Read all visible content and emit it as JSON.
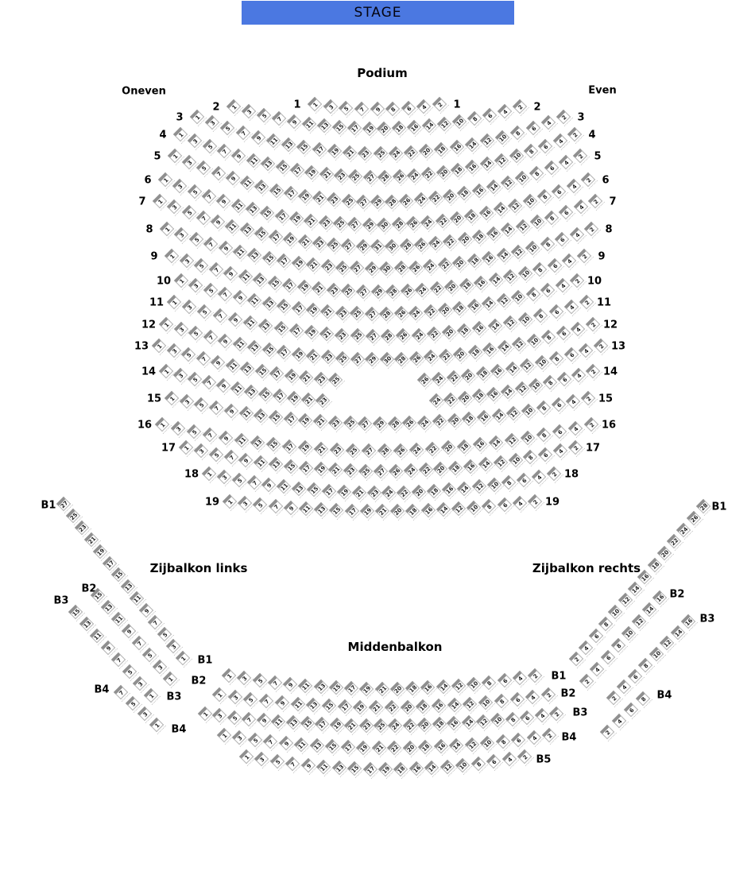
{
  "stage": {
    "label": "STAGE"
  },
  "colors": {
    "stage_fill": "#4b78e1",
    "seat_border": "#b3b3b3",
    "seat_back": "#8f8f8f",
    "label_text": "#000000"
  },
  "podium": {
    "title": "Podium",
    "left_heading": "Oneven",
    "right_heading": "Even",
    "rows": [
      {
        "label": "1",
        "seats": [
          1,
          3,
          5,
          7,
          9,
          8,
          6,
          4,
          2
        ]
      },
      {
        "label": "2",
        "seats": [
          1,
          3,
          5,
          7,
          9,
          11,
          13,
          15,
          17,
          19,
          20,
          18,
          16,
          14,
          12,
          10,
          8,
          6,
          4,
          2
        ]
      },
      {
        "label": "3",
        "seats": [
          1,
          3,
          5,
          7,
          9,
          11,
          13,
          15,
          17,
          19,
          21,
          23,
          25,
          24,
          22,
          20,
          18,
          16,
          14,
          12,
          10,
          8,
          6,
          4,
          2
        ]
      },
      {
        "label": "4",
        "seats": [
          1,
          3,
          5,
          7,
          9,
          11,
          13,
          15,
          17,
          19,
          21,
          23,
          25,
          27,
          28,
          26,
          24,
          22,
          20,
          18,
          16,
          14,
          12,
          10,
          8,
          6,
          4,
          2
        ]
      },
      {
        "label": "5",
        "seats": [
          1,
          3,
          5,
          7,
          9,
          11,
          13,
          15,
          17,
          19,
          21,
          23,
          25,
          27,
          29,
          28,
          26,
          24,
          22,
          20,
          18,
          16,
          14,
          12,
          10,
          8,
          6,
          4,
          2
        ]
      },
      {
        "label": "6",
        "seats": [
          1,
          3,
          5,
          7,
          9,
          11,
          13,
          15,
          17,
          19,
          21,
          23,
          25,
          27,
          29,
          30,
          28,
          26,
          24,
          22,
          20,
          18,
          16,
          14,
          12,
          10,
          8,
          6,
          4,
          2
        ]
      },
      {
        "label": "7",
        "seats": [
          1,
          3,
          5,
          7,
          9,
          11,
          13,
          15,
          17,
          19,
          21,
          23,
          25,
          27,
          29,
          31,
          30,
          28,
          26,
          24,
          22,
          20,
          18,
          16,
          14,
          12,
          10,
          8,
          6,
          4,
          2
        ]
      },
      {
        "label": "8",
        "seats": [
          1,
          3,
          5,
          7,
          9,
          11,
          13,
          15,
          17,
          19,
          21,
          23,
          25,
          27,
          29,
          30,
          28,
          26,
          24,
          22,
          20,
          18,
          16,
          14,
          12,
          10,
          8,
          6,
          4,
          2
        ]
      },
      {
        "label": "9",
        "seats": [
          1,
          3,
          5,
          7,
          9,
          11,
          13,
          15,
          17,
          19,
          21,
          23,
          25,
          27,
          29,
          28,
          26,
          24,
          22,
          20,
          18,
          16,
          14,
          12,
          10,
          8,
          6,
          4,
          2
        ]
      },
      {
        "label": "10",
        "seats": [
          1,
          3,
          5,
          7,
          9,
          11,
          13,
          15,
          17,
          19,
          21,
          23,
          25,
          27,
          28,
          26,
          24,
          22,
          20,
          18,
          16,
          14,
          12,
          10,
          8,
          6,
          4,
          2
        ]
      },
      {
        "label": "11",
        "seats": [
          1,
          3,
          5,
          7,
          9,
          11,
          13,
          15,
          17,
          19,
          21,
          23,
          25,
          27,
          28,
          26,
          24,
          22,
          20,
          18,
          16,
          14,
          12,
          10,
          8,
          6,
          4,
          2
        ]
      },
      {
        "label": "12",
        "seats": [
          1,
          3,
          5,
          7,
          9,
          11,
          13,
          15,
          17,
          19,
          21,
          23,
          25,
          27,
          29,
          30,
          28,
          26,
          24,
          22,
          20,
          18,
          16,
          14,
          12,
          10,
          8,
          6,
          4,
          2
        ]
      },
      {
        "label": "13",
        "seats": [
          1,
          3,
          5,
          7,
          9,
          11,
          13,
          15,
          17,
          19,
          21,
          23,
          25,
          26,
          24,
          22,
          20,
          18,
          16,
          14,
          12,
          10,
          8,
          6,
          4,
          2
        ]
      },
      {
        "label": "14",
        "seats": [
          1,
          3,
          5,
          7,
          9,
          11,
          13,
          15,
          17,
          19,
          21,
          23,
          24,
          22,
          20,
          18,
          16,
          14,
          12,
          10,
          8,
          6,
          4,
          2
        ]
      },
      {
        "label": "15",
        "seats": [
          1,
          3,
          5,
          7,
          9,
          11,
          13,
          15,
          17,
          19,
          21,
          23,
          25,
          27,
          29,
          28,
          26,
          24,
          22,
          20,
          18,
          16,
          14,
          12,
          10,
          8,
          6,
          4,
          2
        ]
      },
      {
        "label": "16",
        "seats": [
          1,
          3,
          5,
          7,
          9,
          11,
          13,
          15,
          17,
          19,
          21,
          23,
          25,
          27,
          28,
          26,
          24,
          22,
          20,
          18,
          16,
          14,
          12,
          10,
          8,
          6,
          4,
          2
        ]
      },
      {
        "label": "17",
        "seats": [
          1,
          3,
          5,
          7,
          9,
          11,
          13,
          15,
          17,
          19,
          21,
          23,
          25,
          27,
          26,
          24,
          22,
          20,
          18,
          16,
          14,
          12,
          10,
          8,
          6,
          4,
          2
        ]
      },
      {
        "label": "18",
        "seats": [
          1,
          3,
          5,
          7,
          9,
          11,
          13,
          15,
          17,
          19,
          21,
          23,
          24,
          22,
          20,
          18,
          16,
          14,
          12,
          10,
          8,
          6,
          4,
          2
        ]
      },
      {
        "label": "19",
        "seats": [
          1,
          3,
          5,
          7,
          9,
          11,
          13,
          15,
          17,
          19,
          21,
          20,
          18,
          16,
          14,
          12,
          10,
          8,
          6,
          4,
          2
        ]
      }
    ]
  },
  "balcony_left": {
    "title": "Zijbalkon links",
    "rows": [
      {
        "label": "B1",
        "seats": [
          27,
          25,
          23,
          21,
          19,
          17,
          15,
          13,
          11,
          9,
          7,
          5,
          3,
          1
        ]
      },
      {
        "label": "B2",
        "seats": [
          15,
          13,
          11,
          9,
          7,
          5,
          3,
          1
        ]
      },
      {
        "label": "B3",
        "seats": [
          15,
          13,
          11,
          9,
          7,
          5,
          3,
          1
        ]
      },
      {
        "label": "B4",
        "seats": [
          7,
          5,
          3,
          1
        ]
      }
    ]
  },
  "balcony_right": {
    "title": "Zijbalkon rechts",
    "rows": [
      {
        "label": "B1",
        "seats": [
          28,
          26,
          24,
          22,
          20,
          18,
          16,
          14,
          12,
          10,
          8,
          6,
          4,
          2
        ]
      },
      {
        "label": "B2",
        "seats": [
          16,
          14,
          12,
          10,
          8,
          6,
          4,
          2
        ]
      },
      {
        "label": "B3",
        "seats": [
          16,
          14,
          12,
          10,
          8,
          6,
          4,
          2
        ]
      },
      {
        "label": "B4",
        "seats": [
          8,
          6,
          4,
          2
        ]
      }
    ]
  },
  "middenbalkon": {
    "title": "Middenbalkon",
    "rows": [
      {
        "label": "B1",
        "seats": [
          1,
          3,
          5,
          7,
          9,
          11,
          13,
          15,
          17,
          19,
          21,
          20,
          18,
          16,
          14,
          12,
          10,
          8,
          6,
          4,
          2
        ]
      },
      {
        "label": "B2",
        "seats": [
          1,
          3,
          5,
          7,
          9,
          11,
          13,
          15,
          17,
          19,
          21,
          22,
          20,
          18,
          16,
          14,
          12,
          10,
          8,
          6,
          4,
          2
        ]
      },
      {
        "label": "B3",
        "seats": [
          1,
          3,
          5,
          7,
          9,
          11,
          13,
          15,
          17,
          19,
          21,
          23,
          25,
          24,
          22,
          20,
          18,
          16,
          14,
          12,
          10,
          8,
          6,
          4,
          2
        ]
      },
      {
        "label": "B4",
        "seats": [
          1,
          3,
          5,
          7,
          9,
          11,
          13,
          15,
          17,
          19,
          21,
          22,
          20,
          18,
          16,
          14,
          12,
          10,
          8,
          6,
          4,
          2
        ]
      },
      {
        "label": "B5",
        "seats": [
          1,
          3,
          5,
          7,
          9,
          11,
          13,
          15,
          17,
          19,
          18,
          16,
          14,
          12,
          10,
          8,
          6,
          4,
          2
        ]
      }
    ]
  }
}
